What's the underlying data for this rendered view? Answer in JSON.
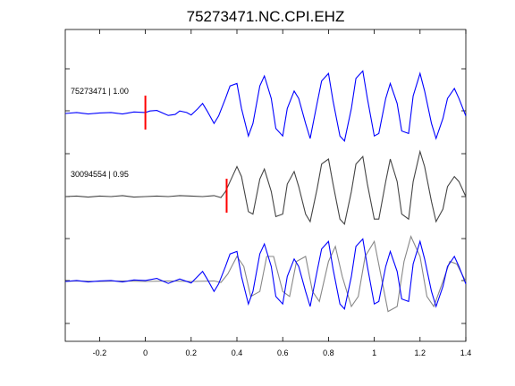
{
  "chart_data": {
    "type": "line",
    "title": "75273471.NC.CPI.EHZ",
    "xlabel": "",
    "ylabel": "",
    "xlim": [
      -0.35,
      1.4
    ],
    "x_ticks": [
      -0.2,
      0,
      0.2,
      0.4,
      0.6,
      0.8,
      1.0,
      1.2,
      1.4
    ],
    "x_tick_labels": [
      "-0.2",
      "0",
      "0.2",
      "0.4",
      "0.6",
      "0.8",
      "1",
      "1.2",
      "1.4"
    ],
    "grid": false,
    "colors": {
      "reference": "#0000ff",
      "match": "#444444",
      "pick": "#ff0000",
      "overlay_match": "#888888"
    },
    "traces": [
      {
        "label": "75273471 | 1.00",
        "color": "#0000ff",
        "pick_time": 0.0,
        "x": [
          -0.35,
          -0.3,
          -0.25,
          -0.2,
          -0.15,
          -0.1,
          -0.05,
          0,
          0.02,
          0.05,
          0.08,
          0.1,
          0.13,
          0.15,
          0.18,
          0.2,
          0.23,
          0.25,
          0.27,
          0.3,
          0.32,
          0.35,
          0.37,
          0.4,
          0.42,
          0.45,
          0.47,
          0.5,
          0.52,
          0.55,
          0.57,
          0.6,
          0.62,
          0.65,
          0.67,
          0.7,
          0.72,
          0.75,
          0.77,
          0.8,
          0.82,
          0.85,
          0.87,
          0.9,
          0.92,
          0.95,
          0.97,
          1.0,
          1.02,
          1.05,
          1.07,
          1.1,
          1.12,
          1.15,
          1.17,
          1.2,
          1.22,
          1.25,
          1.27,
          1.3,
          1.32,
          1.35,
          1.37,
          1.4
        ],
        "y": [
          0,
          0.02,
          -0.01,
          0.01,
          0.02,
          -0.01,
          0.03,
          0.02,
          0.05,
          0.06,
          0.0,
          -0.04,
          -0.02,
          0.05,
          0.02,
          -0.03,
          0.1,
          0.2,
          0.05,
          -0.2,
          -0.05,
          0.3,
          0.55,
          0.6,
          0.1,
          -0.45,
          -0.2,
          0.55,
          0.75,
          0.3,
          -0.3,
          -0.45,
          0.1,
          0.45,
          0.3,
          -0.2,
          -0.5,
          0.2,
          0.65,
          0.8,
          0.25,
          -0.45,
          -0.55,
          0.1,
          0.7,
          0.85,
          0.3,
          -0.45,
          -0.4,
          0.3,
          0.6,
          0.2,
          -0.35,
          -0.4,
          0.35,
          0.8,
          0.45,
          -0.2,
          -0.5,
          -0.1,
          0.3,
          0.5,
          0.3,
          -0.05
        ]
      },
      {
        "label": "30094554 | 0.95",
        "color": "#444444",
        "pick_time": 0.355,
        "x": [
          -0.35,
          -0.3,
          -0.25,
          -0.2,
          -0.15,
          -0.1,
          -0.05,
          0,
          0.05,
          0.1,
          0.15,
          0.2,
          0.25,
          0.3,
          0.33,
          0.35,
          0.37,
          0.4,
          0.42,
          0.45,
          0.47,
          0.5,
          0.52,
          0.55,
          0.57,
          0.6,
          0.62,
          0.65,
          0.67,
          0.7,
          0.72,
          0.75,
          0.77,
          0.8,
          0.82,
          0.85,
          0.87,
          0.9,
          0.92,
          0.95,
          0.97,
          1.0,
          1.02,
          1.05,
          1.07,
          1.1,
          1.12,
          1.15,
          1.17,
          1.2,
          1.22,
          1.25,
          1.27,
          1.3,
          1.32,
          1.35,
          1.37,
          1.4
        ],
        "y": [
          0,
          0.01,
          -0.01,
          0.01,
          0.0,
          0.02,
          -0.01,
          0.0,
          0.01,
          0.0,
          0.02,
          0.01,
          0.0,
          0.02,
          -0.02,
          0.1,
          0.3,
          0.6,
          0.4,
          -0.3,
          -0.35,
          0.35,
          0.55,
          0.1,
          -0.4,
          -0.35,
          0.25,
          0.5,
          0.2,
          -0.35,
          -0.5,
          0.15,
          0.65,
          0.75,
          0.25,
          -0.45,
          -0.55,
          0.1,
          0.65,
          0.8,
          0.25,
          -0.45,
          -0.45,
          0.3,
          0.75,
          0.3,
          -0.35,
          -0.45,
          0.3,
          0.9,
          0.6,
          -0.1,
          -0.5,
          -0.25,
          0.2,
          0.4,
          0.3,
          0.0
        ]
      }
    ],
    "overlay": {
      "series": [
        {
          "color": "#888888",
          "x": [
            -0.35,
            -0.3,
            -0.2,
            -0.1,
            0,
            0.1,
            0.2,
            0.3,
            0.33,
            0.36,
            0.4,
            0.43,
            0.46,
            0.5,
            0.53,
            0.56,
            0.6,
            0.63,
            0.66,
            0.7,
            0.73,
            0.76,
            0.8,
            0.83,
            0.86,
            0.9,
            0.93,
            0.96,
            1.0,
            1.03,
            1.06,
            1.1,
            1.13,
            1.16,
            1.2,
            1.23,
            1.26,
            1.3,
            1.33,
            1.36,
            1.4
          ],
          "y": [
            0,
            0.01,
            0,
            0.01,
            0.0,
            0.01,
            0.0,
            0.01,
            -0.02,
            0.15,
            0.5,
            0.3,
            -0.3,
            -0.2,
            0.5,
            0.5,
            -0.2,
            -0.3,
            0.4,
            0.5,
            -0.2,
            -0.4,
            0.4,
            0.7,
            0.1,
            -0.5,
            -0.3,
            0.5,
            0.8,
            0.1,
            -0.6,
            -0.5,
            0.4,
            0.9,
            0.5,
            -0.3,
            -0.5,
            0.0,
            0.4,
            0.35,
            0.0
          ]
        },
        {
          "color": "#0000ff",
          "x": [
            -0.35,
            -0.3,
            -0.25,
            -0.2,
            -0.15,
            -0.1,
            -0.05,
            0,
            0.05,
            0.1,
            0.15,
            0.2,
            0.25,
            0.27,
            0.3,
            0.32,
            0.35,
            0.37,
            0.4,
            0.42,
            0.45,
            0.47,
            0.5,
            0.52,
            0.55,
            0.57,
            0.6,
            0.62,
            0.65,
            0.67,
            0.7,
            0.72,
            0.75,
            0.77,
            0.8,
            0.82,
            0.85,
            0.87,
            0.9,
            0.92,
            0.95,
            0.97,
            1.0,
            1.02,
            1.05,
            1.07,
            1.1,
            1.12,
            1.15,
            1.17,
            1.2,
            1.22,
            1.25,
            1.27,
            1.3,
            1.32,
            1.35,
            1.37,
            1.4
          ],
          "y": [
            0,
            0.02,
            -0.01,
            0.01,
            0.02,
            -0.01,
            0.03,
            0.02,
            0.06,
            -0.04,
            0.05,
            -0.03,
            0.2,
            0.05,
            -0.2,
            -0.05,
            0.3,
            0.55,
            0.6,
            0.1,
            -0.45,
            -0.2,
            0.55,
            0.75,
            0.3,
            -0.3,
            -0.45,
            0.1,
            0.45,
            0.3,
            -0.2,
            -0.5,
            0.2,
            0.65,
            0.8,
            0.25,
            -0.45,
            -0.55,
            0.1,
            0.7,
            0.85,
            0.3,
            -0.45,
            -0.4,
            0.3,
            0.6,
            0.2,
            -0.35,
            -0.4,
            0.35,
            0.8,
            0.45,
            -0.2,
            -0.5,
            -0.1,
            0.3,
            0.5,
            0.3,
            -0.05
          ]
        }
      ]
    }
  }
}
